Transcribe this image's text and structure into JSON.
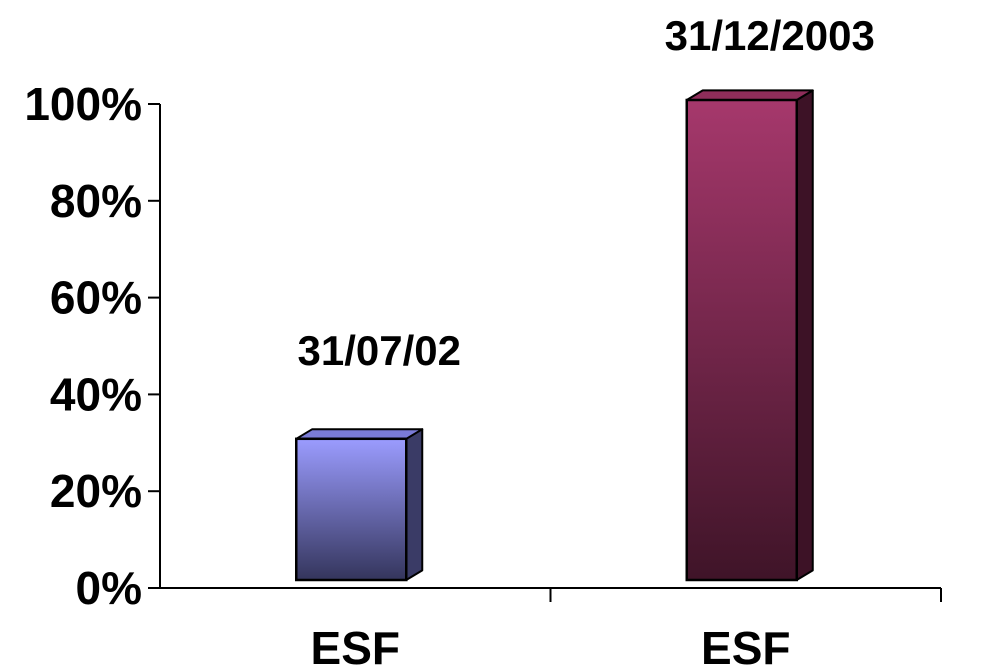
{
  "chart_data": {
    "type": "bar",
    "style": "3d-column",
    "categories": [
      "ESF",
      "ESF"
    ],
    "values": [
      30,
      100
    ],
    "data_labels": [
      "31/07/02",
      "31/12/2003"
    ],
    "colors": [
      {
        "top": "#9b9cff",
        "bottom": "#34355c",
        "side": "#3a3b66",
        "cap": "#7a7bd6"
      },
      {
        "top": "#a6386c",
        "bottom": "#3f1428",
        "side": "#3d1226",
        "cap": "#8e2d5a"
      }
    ],
    "y_ticks": [
      "0%",
      "20%",
      "40%",
      "60%",
      "80%",
      "100%"
    ],
    "ylim": [
      0,
      100
    ],
    "grid": false,
    "legend": "none"
  }
}
